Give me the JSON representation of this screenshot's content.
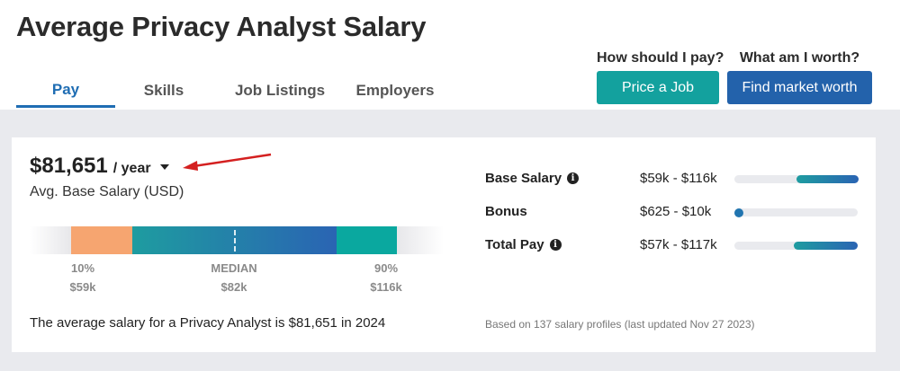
{
  "page": {
    "title": "Average Privacy Analyst Salary"
  },
  "tabs": [
    {
      "label": "Pay",
      "active": true
    },
    {
      "label": "Skills",
      "active": false
    },
    {
      "label": "Job Listings",
      "active": false
    },
    {
      "label": "Employers",
      "active": false
    }
  ],
  "cta": {
    "price": {
      "question": "How should I pay?",
      "button": "Price a Job",
      "color": "#13a19e"
    },
    "worth": {
      "question": "What am I worth?",
      "button": "Find market worth",
      "color": "#2362ab"
    }
  },
  "salary": {
    "amount": "$81,651",
    "period": "/ year",
    "label": "Avg. Base Salary (USD)",
    "summary": "The average salary for a Privacy Analyst is $81,651 in 2024"
  },
  "range": {
    "p10": {
      "label": "10%",
      "value": "$59k"
    },
    "median": {
      "label": "MEDIAN",
      "value": "$82k"
    },
    "p90": {
      "label": "90%",
      "value": "$116k"
    },
    "colors": {
      "low": "#f6a570",
      "mid_start": "#1e9ca0",
      "mid_end": "#2a64b3",
      "high": "#0aa89f"
    }
  },
  "breakdown": [
    {
      "label": "Base Salary",
      "info": true,
      "range": "$59k - $116k",
      "fill_start": 0.5,
      "fill_end": 1.0
    },
    {
      "label": "Bonus",
      "info": false,
      "range": "$625 - $10k",
      "fill_start": 0.0,
      "fill_end": 0.05
    },
    {
      "label": "Total Pay",
      "info": true,
      "range": "$57k - $117k",
      "fill_start": 0.48,
      "fill_end": 1.0
    }
  ],
  "footnote": "Based on 137 salary profiles (last updated Nov 27 2023)",
  "icons": {
    "dropdown": "caret-down-icon",
    "info": "info-icon",
    "annotation": "red-arrow-annotation"
  }
}
